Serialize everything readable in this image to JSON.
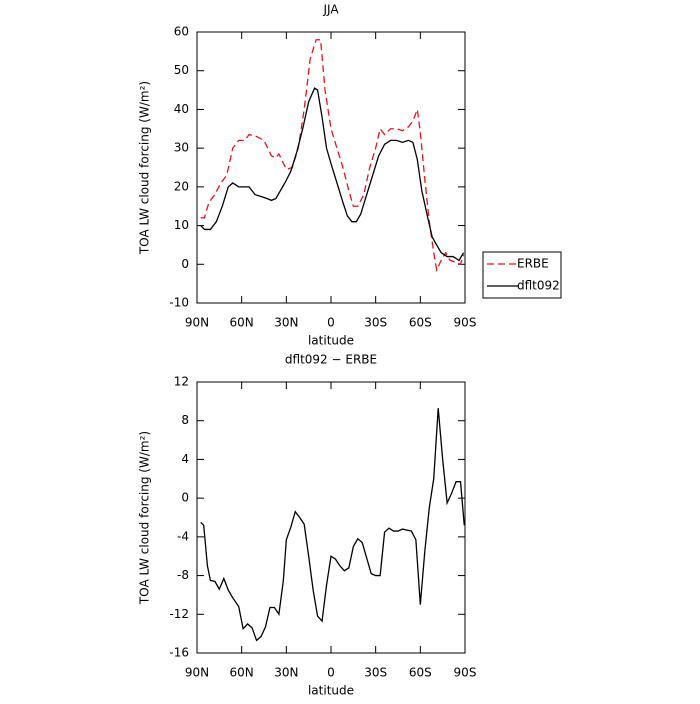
{
  "chart_data": [
    {
      "type": "line",
      "title": "JJA",
      "x_label": "latitude",
      "y_label": "TOA LW cloud forcing (W/m²)",
      "xlim": [
        90,
        -90
      ],
      "xticks": [
        {
          "value": 90,
          "label": "90N"
        },
        {
          "value": 60,
          "label": "60N"
        },
        {
          "value": 30,
          "label": "30N"
        },
        0,
        {
          "value": -30,
          "label": "30S"
        },
        {
          "value": -60,
          "label": "60S"
        },
        {
          "value": -90,
          "label": "90S"
        }
      ],
      "ylim": [
        -10,
        60
      ],
      "yticks": [
        -10,
        0,
        10,
        20,
        30,
        40,
        50,
        60
      ],
      "legend": "right",
      "series": [
        {
          "name": "ERBE",
          "color": "#e8141b",
          "line_style": "dashed",
          "x": [
            87.5,
            85,
            82,
            78,
            74,
            70,
            66,
            62,
            58,
            55,
            50,
            45,
            40,
            37,
            35,
            30,
            26,
            22,
            18,
            14,
            10,
            7,
            4,
            0,
            -4,
            -8,
            -12,
            -15,
            -18,
            -22,
            -26,
            -30,
            -33,
            -36,
            -40,
            -44,
            -48,
            -52,
            -55,
            -58,
            -60,
            -63,
            -66,
            -69,
            -71,
            -74,
            -77,
            -80,
            -84,
            -87,
            -89
          ],
          "values": [
            12,
            12,
            16,
            18,
            21,
            23,
            30,
            32,
            32,
            33.5,
            33,
            32,
            28,
            27.5,
            28.5,
            24.5,
            25,
            30,
            40,
            53,
            58,
            58,
            45,
            35,
            30,
            25,
            19,
            15,
            15,
            18,
            25,
            30,
            35,
            33.5,
            35,
            35,
            34.5,
            35.5,
            37,
            40,
            34,
            22,
            11,
            3,
            -1.5,
            1,
            3,
            1,
            0.5,
            0,
            2.5
          ]
        },
        {
          "name": "dflt092",
          "color": "#000000",
          "line_style": "solid",
          "x": [
            87.5,
            85,
            81,
            77,
            73,
            69,
            66,
            62,
            58,
            55,
            51,
            47,
            43,
            40,
            37,
            34,
            31,
            27,
            23,
            19,
            15,
            11,
            9,
            6,
            3,
            0,
            -4,
            -8,
            -11,
            -14,
            -17,
            -20,
            -24,
            -28,
            -32,
            -36,
            -40,
            -44,
            -48,
            -52,
            -55,
            -58,
            -61,
            -65,
            -68,
            -71,
            -74,
            -78,
            -82,
            -86,
            -89
          ],
          "values": [
            10,
            9,
            9,
            11,
            15,
            20,
            21,
            20,
            20,
            20,
            18,
            17.5,
            17,
            16.5,
            17,
            19,
            21,
            24,
            29,
            35,
            42,
            45.5,
            45,
            38,
            30,
            26,
            21,
            16,
            12.5,
            11,
            11,
            13,
            18,
            23,
            28,
            31,
            32,
            32,
            31.5,
            32,
            31.5,
            27,
            19,
            12,
            7,
            5,
            3,
            2,
            2,
            1,
            3
          ]
        }
      ]
    },
    {
      "type": "line",
      "title": "dflt092 − ERBE",
      "x_label": "latitude",
      "y_label": "TOA LW cloud forcing (W/m²)",
      "xlim": [
        90,
        -90
      ],
      "xticks": [
        {
          "value": 90,
          "label": "90N"
        },
        {
          "value": 60,
          "label": "60N"
        },
        {
          "value": 30,
          "label": "30N"
        },
        0,
        {
          "value": -30,
          "label": "30S"
        },
        {
          "value": -60,
          "label": "60S"
        },
        {
          "value": -90,
          "label": "90S"
        }
      ],
      "ylim": [
        -16,
        12
      ],
      "yticks": [
        -16,
        -12,
        -8,
        -4,
        0,
        4,
        8,
        12
      ],
      "color": "#000000",
      "x": [
        87.5,
        85.5,
        83,
        81,
        78,
        75,
        72,
        69,
        66,
        62,
        59,
        56,
        53,
        50,
        47,
        44,
        41,
        38,
        35,
        32,
        30,
        27,
        24,
        21,
        18,
        15,
        12,
        9,
        6,
        3,
        0,
        -3,
        -6,
        -9,
        -12,
        -15,
        -18,
        -21,
        -24,
        -27,
        -30,
        -33,
        -36,
        -39,
        -42,
        -45,
        -48,
        -51,
        -54,
        -57,
        -60,
        -63,
        -66,
        -69,
        -72,
        -75,
        -78,
        -81,
        -84,
        -87,
        -89.5
      ],
      "values": [
        -2.5,
        -2.8,
        -7,
        -8.5,
        -8.6,
        -9.4,
        -8.3,
        -9.5,
        -10.3,
        -11.2,
        -13.5,
        -13,
        -13.4,
        -14.7,
        -14.3,
        -13.3,
        -11.3,
        -11.3,
        -12,
        -8.5,
        -4.3,
        -3,
        -1.4,
        -2,
        -2.7,
        -6,
        -9.5,
        -12.2,
        -12.7,
        -9,
        -6,
        -6.3,
        -7,
        -7.5,
        -7.2,
        -5,
        -4.2,
        -4.6,
        -6.2,
        -7.8,
        -8,
        -8,
        -3.5,
        -3.1,
        -3.4,
        -3.4,
        -3.2,
        -3.3,
        -3.4,
        -4.3,
        -11,
        -5.5,
        -1,
        2,
        9.3,
        4,
        -0.5,
        0.5,
        1.7,
        1.7,
        -2.8
      ]
    }
  ]
}
